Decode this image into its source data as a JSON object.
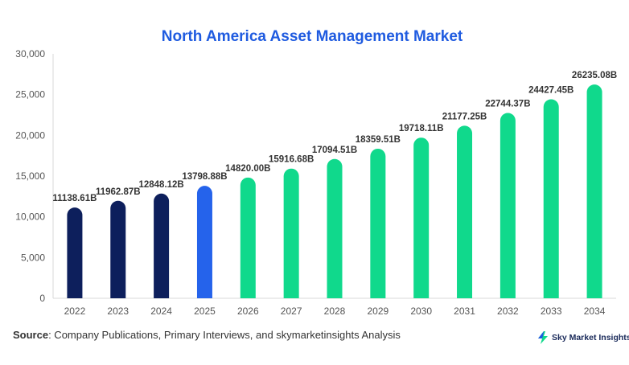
{
  "chart_data": {
    "type": "bar",
    "title": "North America Asset Management Market",
    "categories": [
      "2022",
      "2023",
      "2024",
      "2025",
      "2026",
      "2027",
      "2028",
      "2029",
      "2030",
      "2031",
      "2032",
      "2033",
      "2034"
    ],
    "values": [
      11138.61,
      11962.87,
      12848.12,
      13798.88,
      14820.0,
      15916.68,
      17094.51,
      18359.51,
      19718.11,
      21177.25,
      22744.37,
      24427.45,
      26235.08
    ],
    "data_labels": [
      "11138.61B",
      "11962.87B",
      "12848.12B",
      "13798.88B",
      "14820.00B",
      "15916.68B",
      "17094.51B",
      "18359.51B",
      "19718.11B",
      "21177.25B",
      "22744.37B",
      "24427.45B",
      "26235.08B"
    ],
    "yticks": [
      "0",
      "5,000",
      "10,000",
      "15,000",
      "20,000",
      "25,000",
      "30,000"
    ],
    "ylim": [
      0,
      30000
    ],
    "xlabel": "",
    "ylabel": "",
    "grid": false,
    "legend": "none",
    "colors": {
      "historical": "#0d1f5c",
      "current": "#2563eb",
      "forecast": "#10d98c",
      "title": "#1f5be0"
    },
    "bar_color_groups": [
      "historical",
      "historical",
      "historical",
      "current",
      "forecast",
      "forecast",
      "forecast",
      "forecast",
      "forecast",
      "forecast",
      "forecast",
      "forecast",
      "forecast"
    ]
  },
  "footer": {
    "source_label": "Source",
    "source_text": ": Company Publications, Primary Interviews, and skymarketinsights Analysis",
    "brand_name": "Sky Market Insights",
    "brand_icon": "lightning-bolt-icon"
  }
}
